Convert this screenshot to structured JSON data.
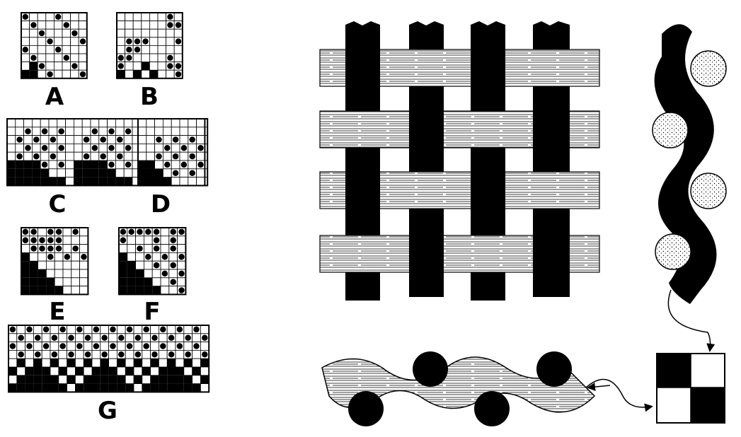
{
  "labels": {
    "a": "A",
    "b": "B",
    "c": "C",
    "d": "D",
    "e": "E",
    "f": "F",
    "g": "G"
  },
  "colors": {
    "ink": "#000000",
    "paper": "#ffffff"
  }
}
